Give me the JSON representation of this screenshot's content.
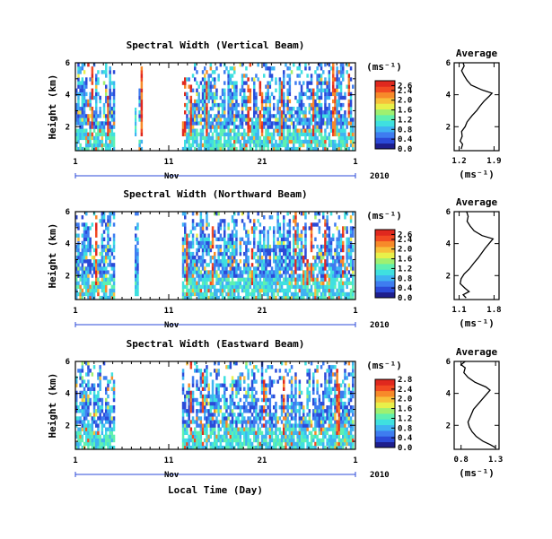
{
  "figure": {
    "xlabel": "Local Time (Day)",
    "month_label": "Nov",
    "year_label": "2010",
    "colorbar_unit": "(ms⁻¹)",
    "avg_title": "Average",
    "avg_xlabel": "(ms⁻¹)",
    "ylabel": "Height (km)"
  },
  "colors": {
    "palette": [
      "#1e1e8c",
      "#2b4ad8",
      "#3e7cf0",
      "#3fb2f2",
      "#3fe0e0",
      "#5ff0b0",
      "#9ff070",
      "#e8f04a",
      "#f7c03a",
      "#f78a2a",
      "#f24a22",
      "#e0281e"
    ],
    "background": "#ffffff"
  },
  "chart_data": [
    {
      "type": "heatmap",
      "title": "Spectral Width (Vertical Beam)",
      "xlabel": "",
      "ylabel": "Height (km)",
      "x_ticks": [
        "1",
        "11",
        "21",
        "1"
      ],
      "x_range_day": [
        1,
        31
      ],
      "y_ticks": [
        "6",
        "4",
        "2"
      ],
      "ylim_km": [
        0.5,
        6
      ],
      "colorbar": {
        "unit": "(ms⁻¹)",
        "ticks": [
          "2.6",
          "2.4",
          "2.0",
          "1.6",
          "1.2",
          "0.8",
          "0.4",
          "0.0"
        ],
        "range": [
          0.0,
          2.8
        ]
      },
      "data_gaps_day": [
        [
          5.2,
          7.7
        ],
        [
          8.0,
          12.3
        ]
      ],
      "average": {
        "title": "Average",
        "xlabel": "(ms⁻¹)",
        "x_ticks": [
          "1.2",
          "1.9"
        ],
        "xlim": [
          1.1,
          2.0
        ],
        "y_ticks": [
          "6",
          "4",
          "2"
        ],
        "ylim_km": [
          0.5,
          6
        ],
        "profile": [
          {
            "h": 0.6,
            "v": 1.24
          },
          {
            "h": 0.9,
            "v": 1.27
          },
          {
            "h": 1.1,
            "v": 1.22
          },
          {
            "h": 1.4,
            "v": 1.26
          },
          {
            "h": 1.7,
            "v": 1.25
          },
          {
            "h": 2.0,
            "v": 1.32
          },
          {
            "h": 2.3,
            "v": 1.36
          },
          {
            "h": 2.7,
            "v": 1.46
          },
          {
            "h": 3.0,
            "v": 1.55
          },
          {
            "h": 3.3,
            "v": 1.62
          },
          {
            "h": 3.6,
            "v": 1.7
          },
          {
            "h": 3.9,
            "v": 1.8
          },
          {
            "h": 4.1,
            "v": 1.86
          },
          {
            "h": 4.3,
            "v": 1.66
          },
          {
            "h": 4.6,
            "v": 1.44
          },
          {
            "h": 4.9,
            "v": 1.36
          },
          {
            "h": 5.2,
            "v": 1.3
          },
          {
            "h": 5.5,
            "v": 1.25
          },
          {
            "h": 5.8,
            "v": 1.3
          },
          {
            "h": 6.0,
            "v": 1.28
          }
        ]
      }
    },
    {
      "type": "heatmap",
      "title": "Spectral Width (Northward Beam)",
      "xlabel": "",
      "ylabel": "Height (km)",
      "x_ticks": [
        "1",
        "11",
        "21",
        "1"
      ],
      "x_range_day": [
        1,
        31
      ],
      "y_ticks": [
        "6",
        "4",
        "2"
      ],
      "ylim_km": [
        0.5,
        6
      ],
      "colorbar": {
        "unit": "(ms⁻¹)",
        "ticks": [
          "2.6",
          "2.4",
          "2.0",
          "1.6",
          "1.2",
          "0.8",
          "0.4",
          "0.0"
        ],
        "range": [
          0.0,
          2.8
        ]
      },
      "data_gaps_day": [
        [
          5.2,
          7.2
        ],
        [
          7.7,
          12.3
        ]
      ],
      "average": {
        "title": "Average",
        "xlabel": "(ms⁻¹)",
        "x_ticks": [
          "1.1",
          "1.8"
        ],
        "xlim": [
          1.0,
          1.9
        ],
        "y_ticks": [
          "6",
          "4",
          "2"
        ],
        "ylim_km": [
          0.5,
          6
        ],
        "profile": [
          {
            "h": 0.6,
            "v": 1.24
          },
          {
            "h": 0.8,
            "v": 1.18
          },
          {
            "h": 1.0,
            "v": 1.3
          },
          {
            "h": 1.2,
            "v": 1.22
          },
          {
            "h": 1.5,
            "v": 1.12
          },
          {
            "h": 1.8,
            "v": 1.14
          },
          {
            "h": 2.1,
            "v": 1.2
          },
          {
            "h": 2.4,
            "v": 1.3
          },
          {
            "h": 2.8,
            "v": 1.4
          },
          {
            "h": 3.1,
            "v": 1.48
          },
          {
            "h": 3.4,
            "v": 1.55
          },
          {
            "h": 3.7,
            "v": 1.62
          },
          {
            "h": 4.0,
            "v": 1.7
          },
          {
            "h": 4.3,
            "v": 1.78
          },
          {
            "h": 4.5,
            "v": 1.56
          },
          {
            "h": 4.8,
            "v": 1.4
          },
          {
            "h": 5.1,
            "v": 1.32
          },
          {
            "h": 5.4,
            "v": 1.26
          },
          {
            "h": 5.7,
            "v": 1.28
          },
          {
            "h": 6.0,
            "v": 1.25
          }
        ]
      }
    },
    {
      "type": "heatmap",
      "title": "Spectral Width (Eastward Beam)",
      "xlabel": "Local Time (Day)",
      "ylabel": "Height (km)",
      "x_ticks": [
        "1",
        "11",
        "21",
        "1"
      ],
      "x_range_day": [
        1,
        31
      ],
      "y_ticks": [
        "6",
        "4",
        "2"
      ],
      "ylim_km": [
        0.5,
        6
      ],
      "colorbar": {
        "unit": "(ms⁻¹)",
        "ticks": [
          "2.8",
          "2.4",
          "2.0",
          "1.6",
          "1.2",
          "0.8",
          "0.4",
          "0.0"
        ],
        "range": [
          0.0,
          2.8
        ]
      },
      "data_gaps_day": [
        [
          5.2,
          12.3
        ]
      ],
      "average": {
        "title": "Average",
        "xlabel": "(ms⁻¹)",
        "x_ticks": [
          "0.8",
          "1.3"
        ],
        "xlim": [
          0.7,
          1.35
        ],
        "y_ticks": [
          "6",
          "4",
          "2"
        ],
        "ylim_km": [
          0.5,
          6
        ],
        "profile": [
          {
            "h": 0.6,
            "v": 1.3
          },
          {
            "h": 0.8,
            "v": 1.22
          },
          {
            "h": 1.0,
            "v": 1.12
          },
          {
            "h": 1.3,
            "v": 1.02
          },
          {
            "h": 1.6,
            "v": 0.96
          },
          {
            "h": 1.9,
            "v": 0.92
          },
          {
            "h": 2.2,
            "v": 0.9
          },
          {
            "h": 2.6,
            "v": 0.94
          },
          {
            "h": 3.0,
            "v": 0.98
          },
          {
            "h": 3.4,
            "v": 1.06
          },
          {
            "h": 3.8,
            "v": 1.14
          },
          {
            "h": 4.2,
            "v": 1.22
          },
          {
            "h": 4.4,
            "v": 1.16
          },
          {
            "h": 4.7,
            "v": 1.0
          },
          {
            "h": 5.0,
            "v": 0.9
          },
          {
            "h": 5.3,
            "v": 0.84
          },
          {
            "h": 5.6,
            "v": 0.86
          },
          {
            "h": 5.8,
            "v": 0.8
          },
          {
            "h": 6.0,
            "v": 0.86
          }
        ]
      }
    }
  ]
}
